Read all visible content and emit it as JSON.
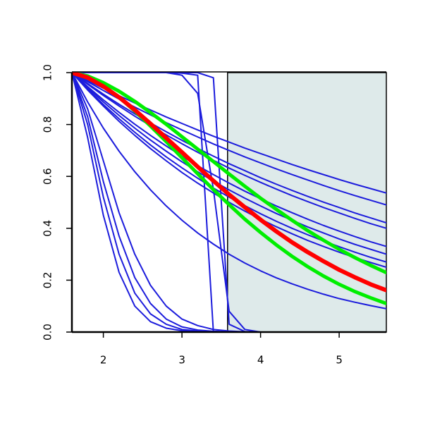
{
  "chart_data": {
    "type": "line",
    "x": [
      1.6,
      1.8,
      2.0,
      2.2,
      2.4,
      2.6,
      2.8,
      3.0,
      3.2,
      3.4,
      3.6,
      3.8,
      4.0,
      4.2,
      4.4,
      4.6,
      4.8,
      5.0,
      5.2,
      5.4,
      5.6
    ],
    "xlim": [
      1.6,
      5.6
    ],
    "xticks": [
      2,
      3,
      4,
      5
    ],
    "ylim": [
      0,
      1
    ],
    "yticks": [
      {
        "value": 0,
        "label": "0.0"
      },
      0.2,
      0.4,
      0.6,
      0.8,
      {
        "value": 1,
        "label": "1.0"
      }
    ],
    "highlight_x": [
      3.58,
      5.6
    ],
    "highlight_color": "#deeaea",
    "series": [
      {
        "color": "#1c1cdc",
        "line_width": 2,
        "values": [
          1,
          0.969,
          0.94,
          0.911,
          0.883,
          0.856,
          0.829,
          0.804,
          0.779,
          0.755,
          0.732,
          0.709,
          0.688,
          0.667,
          0.646,
          0.626,
          0.607,
          0.588,
          0.57,
          0.553,
          0.536
        ]
      },
      {
        "color": "#1c1cdc",
        "line_width": 2,
        "values": [
          1,
          0.965,
          0.931,
          0.898,
          0.867,
          0.837,
          0.807,
          0.779,
          0.752,
          0.725,
          0.7,
          0.675,
          0.652,
          0.629,
          0.607,
          0.586,
          0.565,
          0.545,
          0.526,
          0.508,
          0.49
        ]
      },
      {
        "color": "#1c1cdc",
        "line_width": 2,
        "values": [
          1,
          0.958,
          0.917,
          0.878,
          0.841,
          0.806,
          0.772,
          0.739,
          0.708,
          0.678,
          0.649,
          0.622,
          0.595,
          0.57,
          0.546,
          0.523,
          0.501,
          0.48,
          0.459,
          0.44,
          0.421
        ]
      },
      {
        "color": "#1c1cdc",
        "line_width": 2,
        "values": [
          1,
          0.955,
          0.912,
          0.871,
          0.832,
          0.795,
          0.76,
          0.726,
          0.693,
          0.662,
          0.632,
          0.604,
          0.577,
          0.551,
          0.526,
          0.503,
          0.48,
          0.459,
          0.438,
          0.418,
          0.4
        ]
      },
      {
        "color": "#1c1cdc",
        "line_width": 2,
        "values": [
          1,
          0.946,
          0.895,
          0.847,
          0.801,
          0.758,
          0.717,
          0.678,
          0.641,
          0.607,
          0.574,
          0.543,
          0.514,
          0.486,
          0.46,
          0.435,
          0.411,
          0.389,
          0.368,
          0.348,
          0.33
        ]
      },
      {
        "color": "#1c1cdc",
        "line_width": 2,
        "values": [
          1,
          0.942,
          0.887,
          0.835,
          0.786,
          0.74,
          0.697,
          0.656,
          0.618,
          0.582,
          0.548,
          0.516,
          0.486,
          0.457,
          0.431,
          0.405,
          0.382,
          0.359,
          0.338,
          0.319,
          0.3
        ]
      },
      {
        "color": "#1c1cdc",
        "line_width": 2,
        "values": [
          1,
          0.937,
          0.877,
          0.822,
          0.77,
          0.721,
          0.675,
          0.633,
          0.593,
          0.555,
          0.52,
          0.487,
          0.456,
          0.427,
          0.4,
          0.375,
          0.351,
          0.329,
          0.308,
          0.288,
          0.27
        ]
      },
      {
        "color": "#1c1cdc",
        "line_width": 2,
        "values": [
          1,
          0.933,
          0.871,
          0.812,
          0.758,
          0.707,
          0.66,
          0.615,
          0.574,
          0.536,
          0.5,
          0.466,
          0.435,
          0.406,
          0.379,
          0.353,
          0.33,
          0.308,
          0.287,
          0.268,
          0.25
        ]
      },
      {
        "color": "#1c1cdc",
        "line_width": 2,
        "values": [
          1,
          0.887,
          0.786,
          0.697,
          0.618,
          0.548,
          0.486,
          0.431,
          0.382,
          0.339,
          0.3,
          0.266,
          0.236,
          0.209,
          0.186,
          0.165,
          0.146,
          0.129,
          0.115,
          0.102,
          0.09
        ]
      },
      {
        "color": "#1c1cdc",
        "line_width": 2,
        "values": [
          1,
          0.86,
          0.66,
          0.46,
          0.3,
          0.18,
          0.1,
          0.05,
          0.025,
          0.01,
          0.004,
          0.001,
          0,
          0,
          0,
          0,
          0,
          0,
          0,
          0,
          0
        ]
      },
      {
        "color": "#1c1cdc",
        "line_width": 2,
        "values": [
          1,
          0.83,
          0.58,
          0.37,
          0.21,
          0.11,
          0.05,
          0.02,
          0.008,
          0.003,
          0.001,
          0,
          0,
          0,
          0,
          0,
          0,
          0,
          0,
          0,
          0
        ]
      },
      {
        "color": "#1c1cdc",
        "line_width": 2,
        "values": [
          1,
          0.8,
          0.52,
          0.3,
          0.15,
          0.07,
          0.03,
          0.01,
          0.004,
          0.001,
          0,
          0,
          0,
          0,
          0,
          0,
          0,
          0,
          0,
          0,
          0
        ]
      },
      {
        "color": "#1c1cdc",
        "line_width": 2,
        "values": [
          1,
          0.75,
          0.45,
          0.23,
          0.1,
          0.04,
          0.015,
          0.005,
          0.001,
          0,
          0,
          0,
          0,
          0,
          0,
          0,
          0,
          0,
          0,
          0,
          0
        ]
      },
      {
        "color": "#1c1cdc",
        "line_width": 2,
        "values": [
          1,
          1,
          1,
          1,
          1,
          1,
          1,
          0.998,
          0.99,
          0,
          0,
          0,
          0,
          0,
          0,
          0,
          0,
          0,
          0,
          0,
          0
        ]
      },
      {
        "color": "#1c1cdc",
        "line_width": 2,
        "values": [
          1,
          1,
          1,
          1,
          1,
          1,
          1,
          0.99,
          0.92,
          0.55,
          0.08,
          0.01,
          0,
          0,
          0,
          0,
          0,
          0,
          0,
          0,
          0
        ]
      },
      {
        "color": "#1c1cdc",
        "line_width": 2,
        "values": [
          1,
          1,
          1,
          1,
          1,
          1,
          1,
          1,
          1,
          0.98,
          0.03,
          0.002,
          0,
          0,
          0,
          0,
          0,
          0,
          0,
          0,
          0
        ]
      },
      {
        "color": "#00ee00",
        "line_width": 5,
        "values": [
          1,
          0.987,
          0.961,
          0.928,
          0.889,
          0.846,
          0.801,
          0.753,
          0.705,
          0.657,
          0.609,
          0.562,
          0.516,
          0.473,
          0.431,
          0.391,
          0.354,
          0.319,
          0.287,
          0.257,
          0.229
        ]
      },
      {
        "color": "#00ee00",
        "line_width": 5,
        "values": [
          1,
          0.983,
          0.95,
          0.905,
          0.852,
          0.794,
          0.734,
          0.672,
          0.61,
          0.549,
          0.491,
          0.435,
          0.384,
          0.336,
          0.292,
          0.252,
          0.216,
          0.184,
          0.156,
          0.132,
          0.11
        ]
      },
      {
        "color": "#ff0000",
        "line_width": 6,
        "values": [
          1,
          0.981,
          0.947,
          0.905,
          0.856,
          0.803,
          0.748,
          0.693,
          0.637,
          0.583,
          0.53,
          0.481,
          0.433,
          0.388,
          0.346,
          0.308,
          0.273,
          0.24,
          0.211,
          0.184,
          0.161
        ]
      }
    ]
  }
}
